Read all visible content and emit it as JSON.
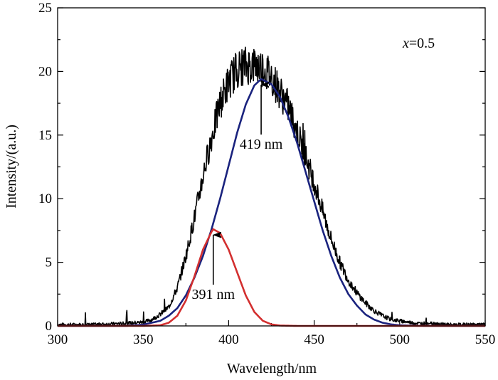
{
  "chart_data": {
    "type": "line",
    "xlabel": "Wavelength/nm",
    "ylabel": "Intensity/(a.u.)",
    "xlim": [
      300,
      550
    ],
    "ylim": [
      0,
      25
    ],
    "xticks": [
      300,
      350,
      400,
      450,
      500,
      550
    ],
    "yticks": [
      0,
      5,
      10,
      15,
      20,
      25
    ],
    "grid": false,
    "legend": "none",
    "annotation_text": {
      "prefix": "x",
      "suffix": "=0.5"
    },
    "series": [
      {
        "color": "#000000",
        "noisy": true,
        "x": [
          300,
          320,
          340,
          350,
          355,
          360,
          365,
          370,
          375,
          380,
          385,
          390,
          395,
          400,
          405,
          410,
          415,
          420,
          425,
          430,
          435,
          440,
          445,
          450,
          455,
          460,
          465,
          470,
          475,
          480,
          485,
          490,
          495,
          500,
          510,
          520,
          530,
          540,
          550
        ],
        "y": [
          0.1,
          0.1,
          0.2,
          0.3,
          0.5,
          0.9,
          1.5,
          3.0,
          5.5,
          8.5,
          11.8,
          14.8,
          17.5,
          19.2,
          20.2,
          20.5,
          20.5,
          20.3,
          19.6,
          18.4,
          17.2,
          15.3,
          13.3,
          11.3,
          9.0,
          6.8,
          5.0,
          3.6,
          2.6,
          1.8,
          1.2,
          0.8,
          0.5,
          0.4,
          0.2,
          0.2,
          0.1,
          0.1,
          0.1
        ]
      },
      {
        "color": "#1a237e",
        "x": [
          300,
          340,
          350,
          360,
          365,
          370,
          375,
          380,
          385,
          390,
          395,
          400,
          405,
          410,
          415,
          419,
          425,
          430,
          435,
          440,
          445,
          450,
          455,
          460,
          465,
          470,
          475,
          480,
          485,
          490,
          495,
          500,
          510,
          520,
          550
        ],
        "y": [
          0,
          0,
          0.1,
          0.4,
          0.8,
          1.4,
          2.4,
          3.8,
          5.5,
          7.6,
          10.0,
          12.6,
          15.2,
          17.4,
          18.9,
          19.4,
          19.0,
          18.0,
          16.4,
          14.4,
          12.1,
          9.8,
          7.5,
          5.5,
          3.8,
          2.5,
          1.6,
          0.9,
          0.5,
          0.25,
          0.12,
          0.05,
          0.01,
          0,
          0
        ]
      },
      {
        "color": "#d32f2f",
        "x": [
          300,
          350,
          360,
          365,
          370,
          375,
          380,
          385,
          390,
          391,
          395,
          400,
          405,
          410,
          415,
          420,
          425,
          430,
          440,
          550
        ],
        "y": [
          0,
          0,
          0.05,
          0.25,
          0.8,
          2.0,
          3.9,
          6.0,
          7.4,
          7.6,
          7.3,
          6.0,
          4.2,
          2.4,
          1.1,
          0.4,
          0.12,
          0.03,
          0,
          0
        ]
      }
    ],
    "annotations": [
      {
        "text": "419 nm",
        "x": 419,
        "y": 19.4
      },
      {
        "text": "391 nm",
        "x": 391,
        "y": 7.6
      }
    ]
  }
}
